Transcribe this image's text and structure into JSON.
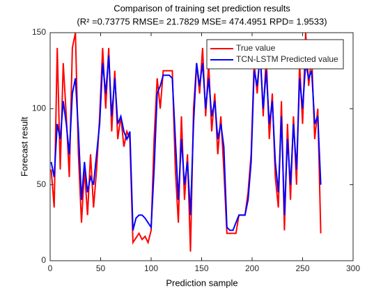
{
  "chart_data": {
    "type": "line",
    "title": "Comparison of training set prediction results",
    "subtitle": "(R² =0.73775 RMSE= 21.7829 MSE= 474.4951 RPD= 1.9533)",
    "x_label": "Prediction sample",
    "y_label": "Forecast result",
    "x": [
      1,
      4,
      7,
      10,
      13,
      16,
      19,
      22,
      25,
      28,
      31,
      34,
      37,
      40,
      43,
      46,
      49,
      52,
      55,
      58,
      61,
      64,
      67,
      70,
      73,
      76,
      79,
      82,
      85,
      88,
      91,
      94,
      97,
      100,
      103,
      106,
      109,
      112,
      115,
      118,
      121,
      124,
      127,
      130,
      133,
      136,
      139,
      142,
      145,
      148,
      151,
      154,
      157,
      160,
      163,
      166,
      169,
      172,
      175,
      178,
      181,
      184,
      187,
      190,
      193,
      196,
      199,
      202,
      205,
      208,
      211,
      214,
      217,
      220,
      223,
      226,
      229,
      232,
      235,
      238,
      241,
      244,
      247,
      250,
      253,
      256,
      259,
      262,
      265,
      268
    ],
    "series": [
      {
        "name": "True value",
        "color": "#ff0000",
        "values": [
          60,
          35,
          140,
          60,
          130,
          95,
          55,
          140,
          150,
          70,
          25,
          60,
          30,
          70,
          35,
          60,
          95,
          140,
          100,
          140,
          85,
          125,
          80,
          95,
          75,
          85,
          80,
          12,
          15,
          18,
          14,
          16,
          12,
          20,
          80,
          120,
          100,
          125,
          125,
          125,
          125,
          60,
          25,
          95,
          40,
          70,
          6,
          100,
          130,
          110,
          140,
          95,
          130,
          85,
          110,
          70,
          95,
          60,
          18,
          18,
          18,
          18,
          30,
          30,
          30,
          45,
          70,
          130,
          110,
          140,
          95,
          135,
          80,
          110,
          55,
          35,
          105,
          20,
          90,
          40,
          95,
          50,
          130,
          90,
          150,
          115,
          135,
          80,
          100,
          18
        ]
      },
      {
        "name": "TCN-LSTM Predicted value",
        "color": "#0000ff",
        "values": [
          65,
          55,
          90,
          80,
          105,
          90,
          70,
          110,
          120,
          85,
          40,
          65,
          45,
          55,
          50,
          70,
          90,
          130,
          110,
          135,
          95,
          120,
          90,
          95,
          85,
          80,
          85,
          20,
          28,
          30,
          30,
          28,
          25,
          22,
          60,
          110,
          115,
          122,
          122,
          122,
          120,
          80,
          40,
          80,
          50,
          65,
          30,
          90,
          130,
          115,
          130,
          100,
          120,
          95,
          105,
          80,
          90,
          75,
          22,
          20,
          20,
          25,
          30,
          30,
          30,
          40,
          65,
          125,
          115,
          135,
          100,
          125,
          90,
          105,
          65,
          45,
          95,
          30,
          80,
          50,
          90,
          60,
          120,
          100,
          130,
          120,
          125,
          90,
          95,
          50
        ]
      }
    ],
    "xlim": [
      0,
      300
    ],
    "xticks": [
      0,
      50,
      100,
      150,
      200,
      250,
      300
    ],
    "ylim": [
      0,
      150
    ],
    "yticks": [
      0,
      50,
      100,
      150
    ],
    "legend": "upper right"
  }
}
